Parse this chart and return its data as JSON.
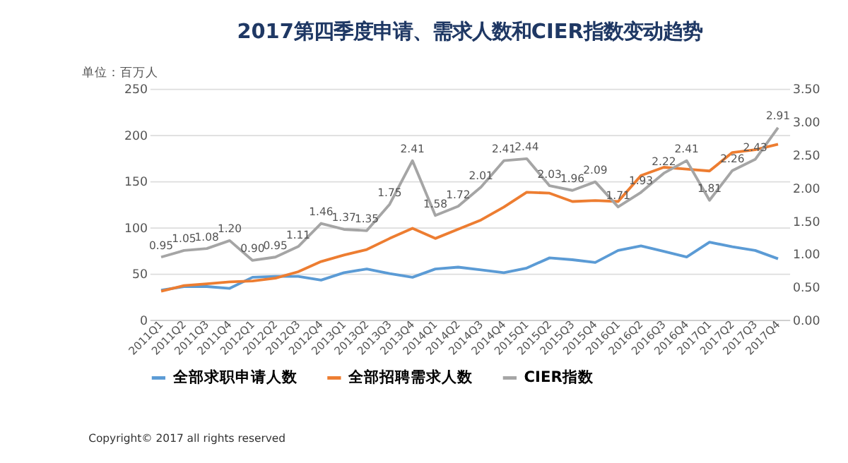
{
  "chart_data": {
    "type": "line",
    "title": "2017第四季度申请、需求人数和CIER指数变动趋势",
    "ylabel": "单位：百万人",
    "categories": [
      "2011Q1",
      "2011Q2",
      "2011Q3",
      "2011Q4",
      "2012Q1",
      "2012Q2",
      "2012Q3",
      "2012Q4",
      "2013Q1",
      "2013Q2",
      "2013Q3",
      "2013Q4",
      "2014Q1",
      "2014Q2",
      "2014Q3",
      "2014Q4",
      "2015Q1",
      "2015Q2",
      "2015Q3",
      "2015Q4",
      "2016Q1",
      "2016Q2",
      "2016Q3",
      "2016Q4",
      "2017Q1",
      "2017Q2",
      "2017Q3",
      "2017Q4"
    ],
    "series": [
      {
        "name": "全部求职申请人数",
        "color": "#5b9bd5",
        "values": [
          32,
          36,
          36,
          34,
          46,
          47,
          47,
          43,
          51,
          55,
          50,
          46,
          55,
          57,
          54,
          51,
          56,
          67,
          65,
          62,
          75,
          80,
          74,
          68,
          84,
          79,
          75,
          66
        ]
      },
      {
        "name": "全部招聘需求人数",
        "color": "#ed7d31",
        "values": [
          31,
          37,
          39,
          41,
          42,
          45,
          52,
          63,
          70,
          76,
          88,
          99,
          88,
          98,
          108,
          122,
          138,
          137,
          128,
          129,
          128,
          156,
          165,
          163,
          161,
          181,
          184,
          190
        ]
      },
      {
        "name": "CIER指数",
        "color": "#a5a5a5",
        "axis": "y2",
        "values": [
          0.95,
          1.05,
          1.08,
          1.2,
          0.9,
          0.95,
          1.11,
          1.46,
          1.37,
          1.35,
          1.75,
          2.41,
          1.58,
          1.72,
          2.01,
          2.41,
          2.44,
          2.03,
          1.96,
          2.09,
          1.71,
          1.93,
          2.22,
          2.41,
          1.81,
          2.26,
          2.43,
          2.91
        ],
        "value_labels": [
          "0.95",
          "1.05",
          "1.08",
          "1.20",
          "0.90",
          "0.95",
          "1.11",
          "1.46",
          "1.37",
          "1.35",
          "1.75",
          "2.41",
          "1.58",
          "1.72",
          "2.01",
          "2.41",
          "2.44",
          "2.03",
          "1.96",
          "2.09",
          "1.71",
          "1.93",
          "2.22",
          "2.41",
          "1.81",
          "2.26",
          "2.43",
          "2.91"
        ]
      }
    ],
    "ylim": [
      0,
      250
    ],
    "yticks": [
      0,
      50,
      100,
      150,
      200,
      250
    ],
    "y2lim": [
      0,
      3.5
    ],
    "y2ticks": [
      {
        "value": 0,
        "label": "0.00"
      },
      {
        "value": 0.5,
        "label": "0.50"
      },
      {
        "value": 1,
        "label": "1.00"
      },
      {
        "value": 1.5,
        "label": "1.50"
      },
      {
        "value": 2,
        "label": "2.00"
      },
      {
        "value": 2.5,
        "label": "2.50"
      },
      {
        "value": 3,
        "label": "3.00"
      },
      {
        "value": 3.5,
        "label": "3.50"
      }
    ],
    "grid": "y",
    "legend": "bottom",
    "marker": "none",
    "line_style": "solid",
    "annotations": [
      "Copyright© 2017 all rights reserved"
    ]
  }
}
